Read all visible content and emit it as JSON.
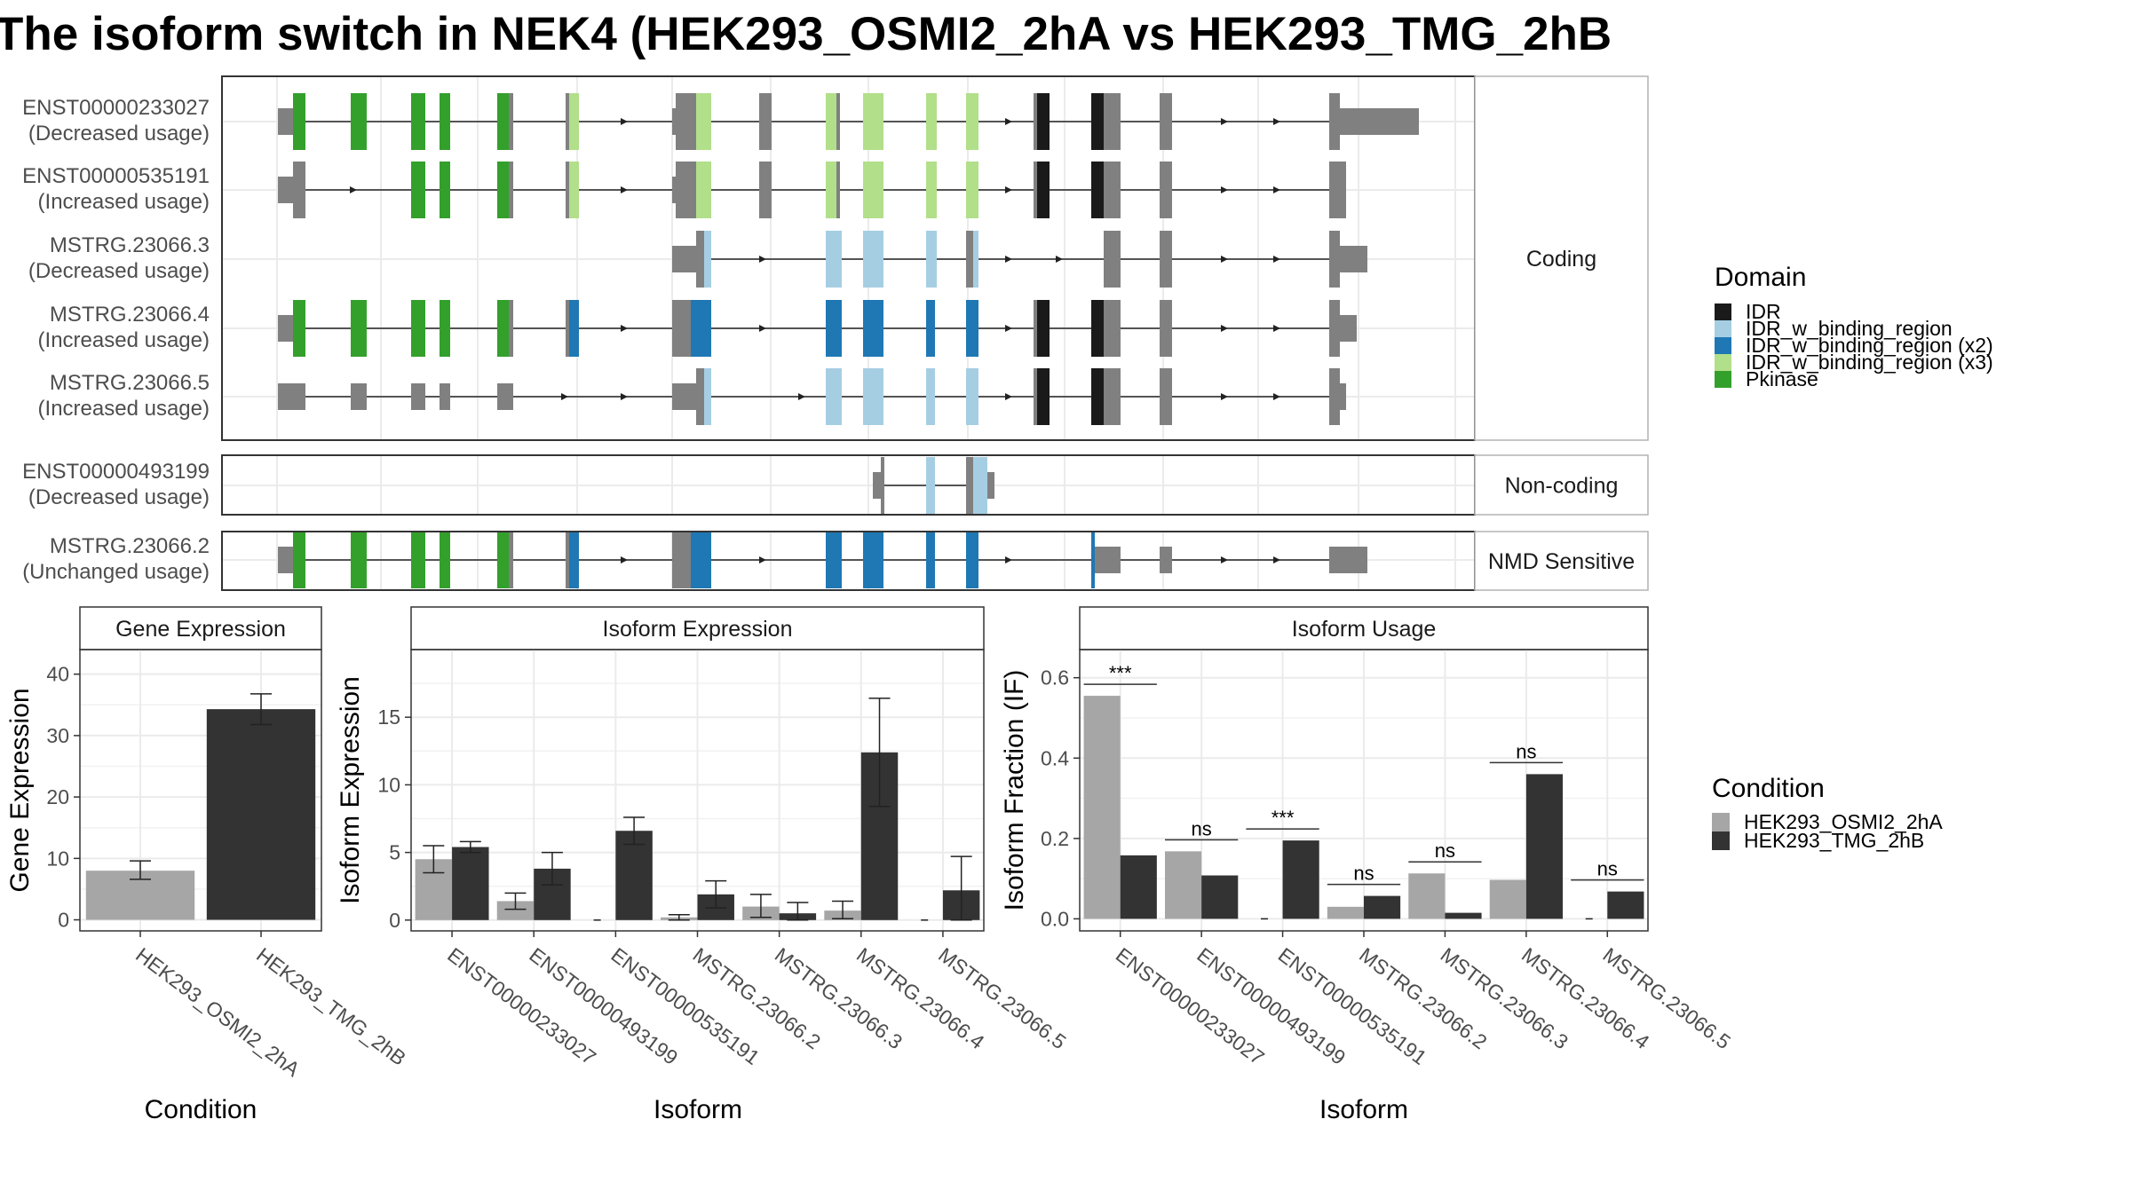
{
  "title": "The isoform switch in NEK4 (HEK293_OSMI2_2hA vs HEK293_TMG_2hB",
  "colors": {
    "IDR": "#1a1a1a",
    "IDR_w_binding_region": "#a6cee3",
    "IDR_w_binding_region (x2)": "#1f78b4",
    "IDR_w_binding_region (x3)": "#b2df8a",
    "Pkinase": "#33a02c",
    "utr": "#808080",
    "condA": "#a6a6a6",
    "condB": "#333333"
  },
  "legend_domain": {
    "title": "Domain",
    "items": [
      "IDR",
      "IDR_w_binding_region",
      "IDR_w_binding_region (x2)",
      "IDR_w_binding_region (x3)",
      "Pkinase"
    ]
  },
  "legend_condition": {
    "title": "Condition",
    "items": [
      "HEK293_OSMI2_2hA",
      "HEK293_TMG_2hB"
    ]
  },
  "structure": {
    "panels": [
      {
        "label": "Coding",
        "tracks": [
          {
            "id": "ENST00000233027",
            "usage": "(Decreased usage)"
          },
          {
            "id": "ENST00000535191",
            "usage": "(Increased usage)"
          },
          {
            "id": "MSTRG.23066.3",
            "usage": "(Decreased usage)"
          },
          {
            "id": "MSTRG.23066.4",
            "usage": "(Increased usage)"
          },
          {
            "id": "MSTRG.23066.5",
            "usage": "(Increased usage)"
          }
        ]
      },
      {
        "label": "Non-coding",
        "tracks": [
          {
            "id": "ENST00000493199",
            "usage": "(Decreased usage)"
          }
        ]
      },
      {
        "label": "NMD Sensitive",
        "tracks": [
          {
            "id": "MSTRG.23066.2",
            "usage": "(Unchanged usage)"
          }
        ]
      }
    ]
  },
  "chart_data": [
    {
      "type": "bar",
      "title": "Gene Expression",
      "xlabel": "Condition",
      "ylabel": "Gene Expression",
      "ylim": [
        -1.8,
        44
      ],
      "yticks": [
        0,
        10,
        20,
        30,
        40
      ],
      "categories": [
        "HEK293_OSMI2_2hA",
        "HEK293_TMG_2hB"
      ],
      "series": [
        {
          "values": [
            8.0,
            34.3
          ],
          "err_low": [
            6.6,
            31.8
          ],
          "err_high": [
            9.6,
            36.8
          ]
        }
      ]
    },
    {
      "type": "bar",
      "title": "Isoform Expression",
      "xlabel": "Isoform",
      "ylabel": "Isoform Expression",
      "ylim": [
        -0.8,
        20
      ],
      "yticks": [
        0,
        5,
        10,
        15
      ],
      "categories": [
        "ENST00000233027",
        "ENST00000493199",
        "ENST00000535191",
        "MSTRG.23066.2",
        "MSTRG.23066.3",
        "MSTRG.23066.4",
        "MSTRG.23066.5"
      ],
      "series": [
        {
          "name": "HEK293_OSMI2_2hA",
          "values": [
            4.5,
            1.4,
            0.0,
            0.2,
            1.0,
            0.7,
            0.0
          ],
          "err_low": [
            3.5,
            0.8,
            0.0,
            0.0,
            0.2,
            0.1,
            0.0
          ],
          "err_high": [
            5.5,
            2.0,
            0.0,
            0.4,
            1.9,
            1.4,
            0.0
          ]
        },
        {
          "name": "HEK293_TMG_2hB",
          "values": [
            5.4,
            3.8,
            6.6,
            1.9,
            0.5,
            12.4,
            2.2
          ],
          "err_low": [
            5.0,
            2.6,
            5.6,
            0.9,
            0.0,
            8.4,
            0.0
          ],
          "err_high": [
            5.8,
            5.0,
            7.6,
            2.9,
            1.3,
            16.4,
            4.7
          ]
        }
      ]
    },
    {
      "type": "bar",
      "title": "Isoform Usage",
      "xlabel": "Isoform",
      "ylabel": "Isoform Fraction (IF)",
      "ylim": [
        -0.03,
        0.67
      ],
      "yticks": [
        "0.0",
        "0.2",
        "0.4",
        "0.6"
      ],
      "categories": [
        "ENST00000233027",
        "ENST00000493199",
        "ENST00000535191",
        "MSTRG.23066.2",
        "MSTRG.23066.3",
        "MSTRG.23066.4",
        "MSTRG.23066.5"
      ],
      "series": [
        {
          "name": "HEK293_OSMI2_2hA",
          "values": [
            0.555,
            0.168,
            0.0,
            0.03,
            0.113,
            0.097,
            0.0
          ]
        },
        {
          "name": "HEK293_TMG_2hB",
          "values": [
            0.158,
            0.108,
            0.195,
            0.057,
            0.015,
            0.36,
            0.068
          ]
        }
      ],
      "significance": [
        "***",
        "ns",
        "***",
        "ns",
        "ns",
        "ns",
        "ns"
      ]
    }
  ]
}
